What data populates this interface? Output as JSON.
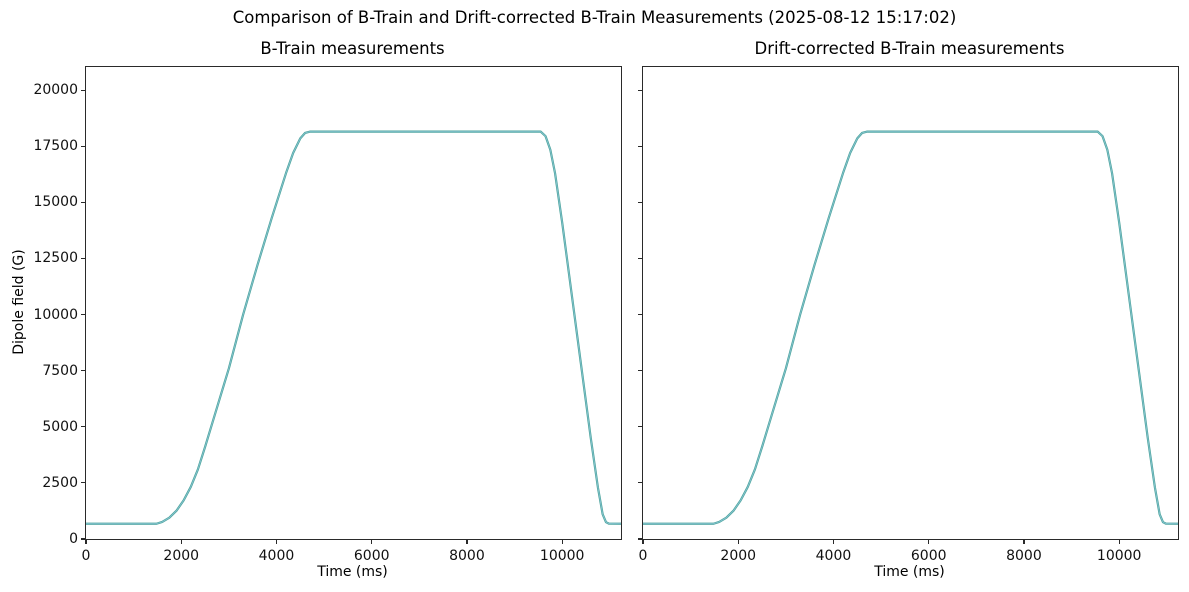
{
  "figure": {
    "suptitle": "Comparison of B-Train and Drift-corrected B-Train Measurements (2025-08-12 15:17:02)",
    "background": "#ffffff",
    "text_color": "#000000"
  },
  "chart_data": [
    {
      "type": "line",
      "title": "B-Train measurements",
      "xlabel": "Time (ms)",
      "ylabel": "Dipole field (G)",
      "xlim": [
        0,
        11235
      ],
      "ylim": [
        0,
        21030
      ],
      "xticks": [
        0,
        2000,
        4000,
        6000,
        8000,
        10000
      ],
      "yticks": [
        0,
        2500,
        5000,
        7500,
        10000,
        12500,
        15000,
        17500,
        20000
      ],
      "show_ytick_labels": true,
      "grid": false,
      "legend": "none",
      "series": [
        {
          "name": "dipole-field-btrain",
          "color": "#4BA39A",
          "core_color": "#8FC9DB",
          "flat_bottom_G": 680,
          "flat_top_G": 18150,
          "points": [
            [
              0,
              680
            ],
            [
              1480,
              680
            ],
            [
              1600,
              760
            ],
            [
              1750,
              950
            ],
            [
              1900,
              1260
            ],
            [
              2050,
              1720
            ],
            [
              2200,
              2320
            ],
            [
              2350,
              3100
            ],
            [
              2500,
              4100
            ],
            [
              2700,
              5500
            ],
            [
              3000,
              7600
            ],
            [
              3300,
              10000
            ],
            [
              3600,
              12200
            ],
            [
              3900,
              14300
            ],
            [
              4050,
              15300
            ],
            [
              4200,
              16300
            ],
            [
              4350,
              17200
            ],
            [
              4500,
              17850
            ],
            [
              4600,
              18090
            ],
            [
              4700,
              18150
            ],
            [
              9550,
              18150
            ],
            [
              9650,
              17950
            ],
            [
              9750,
              17350
            ],
            [
              9850,
              16300
            ],
            [
              10000,
              14100
            ],
            [
              10200,
              10900
            ],
            [
              10400,
              7700
            ],
            [
              10600,
              4500
            ],
            [
              10750,
              2300
            ],
            [
              10850,
              1100
            ],
            [
              10920,
              750
            ],
            [
              10980,
              685
            ],
            [
              11235,
              680
            ]
          ]
        }
      ]
    },
    {
      "type": "line",
      "title": "Drift-corrected B-Train measurements",
      "xlabel": "Time (ms)",
      "ylabel": "",
      "xlim": [
        0,
        11235
      ],
      "ylim": [
        0,
        21030
      ],
      "xticks": [
        0,
        2000,
        4000,
        6000,
        8000,
        10000
      ],
      "yticks": [
        0,
        2500,
        5000,
        7500,
        10000,
        12500,
        15000,
        17500,
        20000
      ],
      "show_ytick_labels": false,
      "grid": false,
      "legend": "none",
      "series": [
        {
          "name": "dipole-field-drift-corrected",
          "color": "#4BA39A",
          "core_color": "#8FC9DB",
          "flat_bottom_G": 680,
          "flat_top_G": 18150,
          "points": [
            [
              0,
              680
            ],
            [
              1480,
              680
            ],
            [
              1600,
              760
            ],
            [
              1750,
              950
            ],
            [
              1900,
              1260
            ],
            [
              2050,
              1720
            ],
            [
              2200,
              2320
            ],
            [
              2350,
              3100
            ],
            [
              2500,
              4100
            ],
            [
              2700,
              5500
            ],
            [
              3000,
              7600
            ],
            [
              3300,
              10000
            ],
            [
              3600,
              12200
            ],
            [
              3900,
              14300
            ],
            [
              4050,
              15300
            ],
            [
              4200,
              16300
            ],
            [
              4350,
              17200
            ],
            [
              4500,
              17850
            ],
            [
              4600,
              18090
            ],
            [
              4700,
              18150
            ],
            [
              9550,
              18150
            ],
            [
              9650,
              17950
            ],
            [
              9750,
              17350
            ],
            [
              9850,
              16300
            ],
            [
              10000,
              14100
            ],
            [
              10200,
              10900
            ],
            [
              10400,
              7700
            ],
            [
              10600,
              4500
            ],
            [
              10750,
              2300
            ],
            [
              10850,
              1100
            ],
            [
              10920,
              750
            ],
            [
              10980,
              685
            ],
            [
              11235,
              680
            ]
          ]
        }
      ]
    }
  ]
}
